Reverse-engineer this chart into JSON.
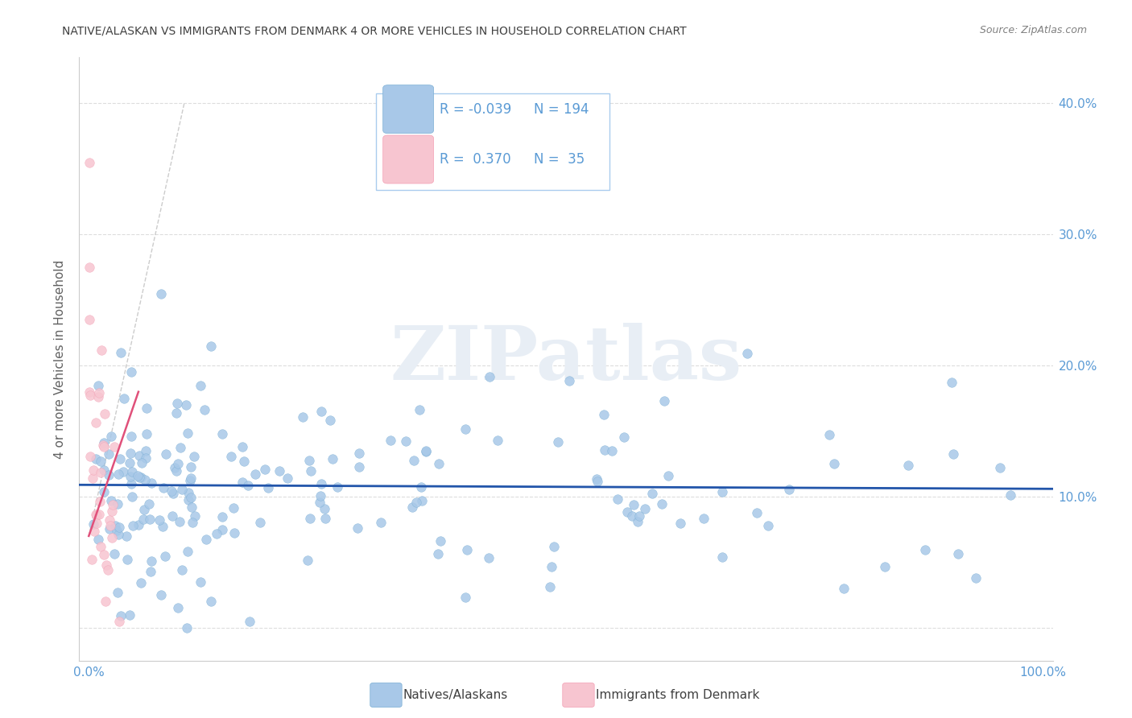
{
  "title": "NATIVE/ALASKAN VS IMMIGRANTS FROM DENMARK 4 OR MORE VEHICLES IN HOUSEHOLD CORRELATION CHART",
  "source": "Source: ZipAtlas.com",
  "ylabel": "4 or more Vehicles in Household",
  "blue_color": "#a8c8e8",
  "blue_edge_color": "#7bafd4",
  "pink_color": "#f7c5d0",
  "pink_edge_color": "#f4a0b5",
  "blue_line_color": "#2255aa",
  "pink_line_color": "#e0507a",
  "diag_line_color": "#cccccc",
  "watermark": "ZIPatlas",
  "watermark_color": "#e8eef5",
  "legend_R_blue": "-0.039",
  "legend_N_blue": "194",
  "legend_R_pink": " 0.370",
  "legend_N_pink": " 35",
  "text_color": "#5b9bd5",
  "title_color": "#404040",
  "source_color": "#808080",
  "ylabel_color": "#606060",
  "grid_color": "#dddddd",
  "spine_color": "#cccccc"
}
